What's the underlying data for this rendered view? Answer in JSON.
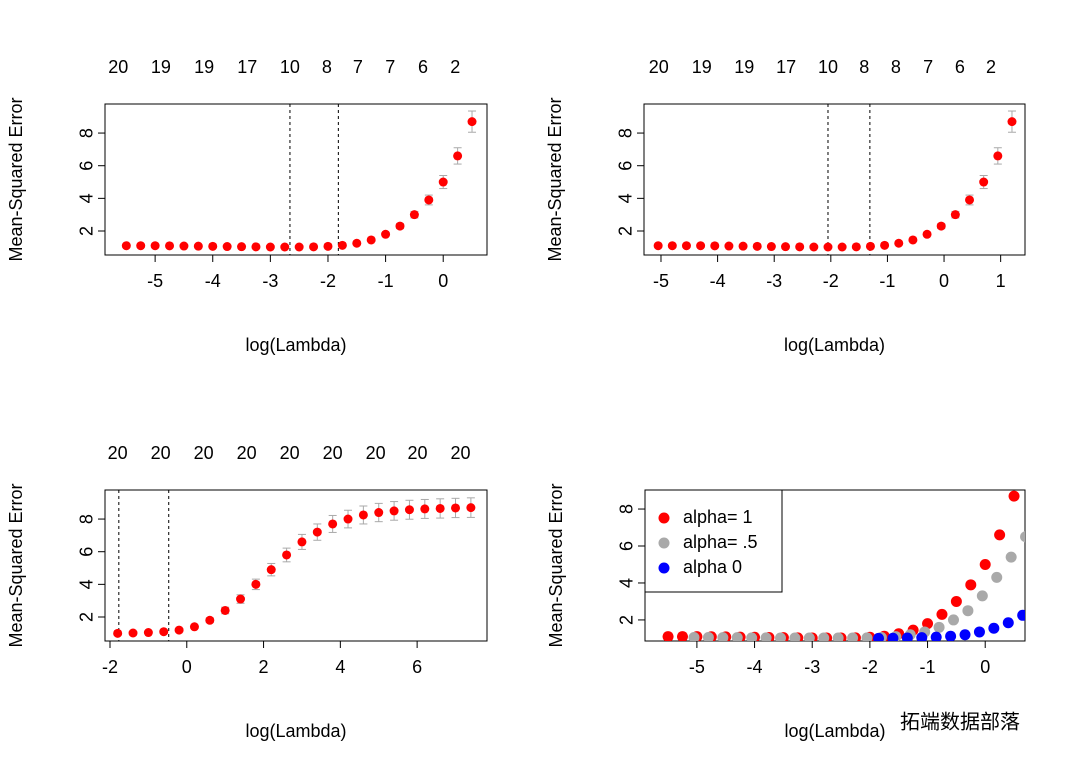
{
  "chart_data": [
    {
      "type": "errorbar",
      "xlabel": "log(Lambda)",
      "ylabel": "Mean-Squared Error",
      "color": "#ff0000",
      "error_color": "#a9a9a9",
      "x": [
        -5.5,
        -5.25,
        -5,
        -4.75,
        -4.5,
        -4.25,
        -4,
        -3.75,
        -3.5,
        -3.25,
        -3,
        -2.75,
        -2.5,
        -2.25,
        -2,
        -1.75,
        -1.5,
        -1.25,
        -1,
        -0.75,
        -0.5,
        -0.25,
        0,
        0.25,
        0.5
      ],
      "values": [
        1.1,
        1.1,
        1.1,
        1.09,
        1.08,
        1.07,
        1.06,
        1.05,
        1.04,
        1.03,
        1.02,
        1.02,
        1.02,
        1.03,
        1.06,
        1.12,
        1.25,
        1.45,
        1.8,
        2.3,
        3.0,
        3.9,
        5.0,
        6.6,
        8.7
      ],
      "errors": [
        0.05,
        0.05,
        0.05,
        0.05,
        0.05,
        0.05,
        0.05,
        0.05,
        0.05,
        0.05,
        0.05,
        0.05,
        0.05,
        0.05,
        0.05,
        0.05,
        0.06,
        0.07,
        0.1,
        0.15,
        0.2,
        0.3,
        0.4,
        0.5,
        0.65
      ],
      "vlines": [
        -2.66,
        -1.82
      ],
      "top_ticks": [
        {
          "value": -5.64,
          "label": "20"
        },
        {
          "value": -4.9,
          "label": "19"
        },
        {
          "value": -4.15,
          "label": "19"
        },
        {
          "value": -3.4,
          "label": "17"
        },
        {
          "value": -2.66,
          "label": "10"
        },
        {
          "value": -2.02,
          "label": "8"
        },
        {
          "value": -1.48,
          "label": "7"
        },
        {
          "value": -0.92,
          "label": "7"
        },
        {
          "value": -0.35,
          "label": "6"
        },
        {
          "value": 0.21,
          "label": "2"
        }
      ],
      "xlim": [
        -5.87,
        0.76
      ],
      "ylim": [
        0.53,
        9.78
      ],
      "xticks": [
        -5,
        -4,
        -3,
        -2,
        -1,
        0
      ],
      "yticks": [
        2,
        4,
        6,
        8
      ]
    },
    {
      "type": "errorbar",
      "xlabel": "log(Lambda)",
      "ylabel": "Mean-Squared Error",
      "color": "#ff0000",
      "error_color": "#a9a9a9",
      "x": [
        -5.05,
        -4.8,
        -4.55,
        -4.3,
        -4.05,
        -3.8,
        -3.55,
        -3.3,
        -3.05,
        -2.8,
        -2.55,
        -2.3,
        -2.05,
        -1.8,
        -1.55,
        -1.3,
        -1.05,
        -0.8,
        -0.55,
        -0.3,
        -0.05,
        0.2,
        0.45,
        0.7,
        0.95,
        1.2
      ],
      "values": [
        1.1,
        1.1,
        1.1,
        1.1,
        1.09,
        1.08,
        1.07,
        1.06,
        1.05,
        1.04,
        1.03,
        1.02,
        1.02,
        1.02,
        1.03,
        1.06,
        1.12,
        1.25,
        1.45,
        1.8,
        2.3,
        3.0,
        3.9,
        5.0,
        6.6,
        8.7
      ],
      "errors": [
        0.05,
        0.05,
        0.05,
        0.05,
        0.05,
        0.05,
        0.05,
        0.05,
        0.05,
        0.05,
        0.05,
        0.05,
        0.05,
        0.05,
        0.05,
        0.05,
        0.05,
        0.06,
        0.07,
        0.1,
        0.15,
        0.2,
        0.3,
        0.4,
        0.5,
        0.65
      ],
      "vlines": [
        -2.05,
        -1.31
      ],
      "top_ticks": [
        {
          "value": -5.04,
          "label": "20"
        },
        {
          "value": -4.28,
          "label": "19"
        },
        {
          "value": -3.53,
          "label": "19"
        },
        {
          "value": -2.79,
          "label": "17"
        },
        {
          "value": -2.05,
          "label": "10"
        },
        {
          "value": -1.41,
          "label": "8"
        },
        {
          "value": -0.85,
          "label": "8"
        },
        {
          "value": -0.28,
          "label": "7"
        },
        {
          "value": 0.28,
          "label": "6"
        },
        {
          "value": 0.83,
          "label": "2"
        }
      ],
      "xlim": [
        -5.3,
        1.43
      ],
      "ylim": [
        0.53,
        9.78
      ],
      "xticks": [
        -5,
        -4,
        -3,
        -2,
        -1,
        0,
        1
      ],
      "yticks": [
        2,
        4,
        6,
        8
      ]
    },
    {
      "type": "errorbar",
      "xlabel": "log(Lambda)",
      "ylabel": "Mean-Squared Error",
      "color": "#ff0000",
      "error_color": "#a9a9a9",
      "x": [
        -1.8,
        -1.4,
        -1,
        -0.6,
        -0.2,
        0.2,
        0.6,
        1,
        1.4,
        1.8,
        2.2,
        2.6,
        3,
        3.4,
        3.8,
        4.2,
        4.6,
        5,
        5.4,
        5.8,
        6.2,
        6.6,
        7,
        7.4
      ],
      "values": [
        1.0,
        1.02,
        1.05,
        1.1,
        1.2,
        1.4,
        1.8,
        2.4,
        3.1,
        4.0,
        4.9,
        5.8,
        6.6,
        7.2,
        7.7,
        8.0,
        8.25,
        8.4,
        8.5,
        8.57,
        8.62,
        8.65,
        8.68,
        8.7
      ],
      "errors": [
        0.03,
        0.03,
        0.04,
        0.05,
        0.07,
        0.1,
        0.14,
        0.2,
        0.26,
        0.32,
        0.38,
        0.42,
        0.46,
        0.5,
        0.52,
        0.54,
        0.55,
        0.56,
        0.57,
        0.58,
        0.58,
        0.59,
        0.59,
        0.6
      ],
      "vlines": [
        -1.77,
        -0.47
      ],
      "top_ticks": [
        {
          "value": -1.8,
          "label": "20"
        },
        {
          "value": -0.68,
          "label": "20"
        },
        {
          "value": 0.44,
          "label": "20"
        },
        {
          "value": 1.56,
          "label": "20"
        },
        {
          "value": 2.68,
          "label": "20"
        },
        {
          "value": 3.8,
          "label": "20"
        },
        {
          "value": 4.92,
          "label": "20"
        },
        {
          "value": 6.01,
          "label": "20"
        },
        {
          "value": 7.13,
          "label": "20"
        }
      ],
      "xlim": [
        -2.13,
        7.82
      ],
      "ylim": [
        0.53,
        9.78
      ],
      "xticks": [
        -2,
        0,
        2,
        4,
        6
      ],
      "yticks": [
        2,
        4,
        6,
        8
      ]
    },
    {
      "type": "scatter",
      "xlabel": "log(Lambda)",
      "ylabel": "Mean-Squared Error",
      "legend": "topleft",
      "series": [
        {
          "name": "alpha= 1",
          "color": "#ff0000",
          "x": [
            -5.5,
            -5.25,
            -5,
            -4.75,
            -4.5,
            -4.25,
            -4,
            -3.75,
            -3.5,
            -3.25,
            -3,
            -2.75,
            -2.5,
            -2.25,
            -2,
            -1.75,
            -1.5,
            -1.25,
            -1,
            -0.75,
            -0.5,
            -0.25,
            0,
            0.25,
            0.5
          ],
          "values": [
            1.1,
            1.1,
            1.1,
            1.09,
            1.08,
            1.07,
            1.06,
            1.05,
            1.04,
            1.03,
            1.02,
            1.02,
            1.02,
            1.03,
            1.06,
            1.12,
            1.25,
            1.45,
            1.8,
            2.3,
            3.0,
            3.9,
            5.0,
            6.6,
            8.7
          ]
        },
        {
          "name": "alpha= .5",
          "color": "#a9a9a9",
          "x": [
            -5.05,
            -4.8,
            -4.55,
            -4.3,
            -4.05,
            -3.8,
            -3.55,
            -3.3,
            -3.05,
            -2.8,
            -2.55,
            -2.3,
            -2.05,
            -1.8,
            -1.55,
            -1.3,
            -1.05,
            -0.8,
            -0.55,
            -0.3,
            -0.05,
            0.2,
            0.45,
            0.7
          ],
          "values": [
            1.05,
            1.05,
            1.04,
            1.04,
            1.03,
            1.03,
            1.02,
            1.02,
            1.02,
            1.02,
            1.02,
            1.02,
            1.03,
            1.05,
            1.1,
            1.2,
            1.35,
            1.6,
            2.0,
            2.5,
            3.3,
            4.3,
            5.4,
            6.5
          ]
        },
        {
          "name": "alpha 0",
          "color": "#0000ff",
          "x": [
            -1.85,
            -1.6,
            -1.35,
            -1.1,
            -0.85,
            -0.6,
            -0.35,
            -0.1,
            0.15,
            0.4,
            0.65
          ],
          "values": [
            1.0,
            1.01,
            1.02,
            1.04,
            1.07,
            1.12,
            1.2,
            1.35,
            1.55,
            1.85,
            2.25
          ]
        }
      ],
      "xlim": [
        -5.9,
        0.69
      ],
      "ylim": [
        0.86,
        9.03
      ],
      "xticks": [
        -5,
        -4,
        -3,
        -2,
        -1,
        0
      ],
      "yticks": [
        2,
        4,
        6,
        8
      ]
    }
  ],
  "watermark": "拓端数据部落"
}
